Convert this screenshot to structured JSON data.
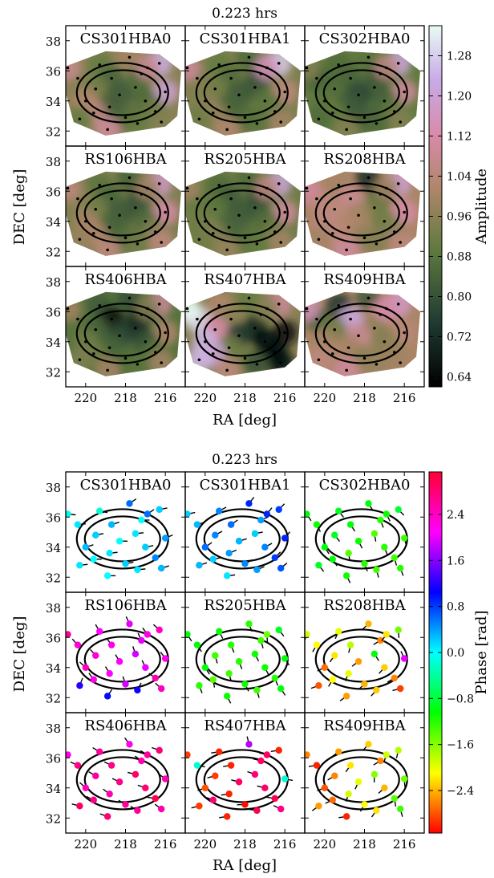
{
  "figure": {
    "panels": [
      {
        "title": "0.223 hrs",
        "xlabel": "RA [deg]",
        "ylabel": "DEC [deg]",
        "colorbar_label": "Amplitude",
        "colorbar_ticks": [
          "1.28",
          "1.20",
          "1.12",
          "1.04",
          "0.96",
          "0.88",
          "0.80",
          "0.72",
          "0.64"
        ]
      },
      {
        "title": "0.223 hrs",
        "xlabel": "RA [deg]",
        "ylabel": "DEC [deg]",
        "colorbar_label": "Phase [rad]",
        "colorbar_ticks": [
          "2.4",
          "1.6",
          "0.8",
          "0.0",
          "−0.8",
          "−1.6",
          "−2.4"
        ]
      }
    ],
    "stations": [
      "CS301HBA0",
      "CS301HBA1",
      "CS302HBA0",
      "RS106HBA",
      "RS205HBA",
      "RS208HBA",
      "RS406HBA",
      "RS407HBA",
      "RS409HBA"
    ],
    "x_ticks": [
      "220",
      "218",
      "216"
    ],
    "y_ticks": [
      "38",
      "36",
      "34",
      "32"
    ]
  },
  "chart_data": [
    {
      "type": "heatmap",
      "title": "0.223 hrs",
      "xlabel": "RA [deg]",
      "ylabel": "DEC [deg]",
      "colorbar_label": "Amplitude",
      "xlim": [
        221,
        215
      ],
      "ylim": [
        31,
        39
      ],
      "clim": [
        0.62,
        1.34
      ],
      "colorbar_ticks": [
        1.28,
        1.2,
        1.12,
        1.04,
        0.96,
        0.88,
        0.8,
        0.72,
        0.64
      ],
      "directions": [
        [
          216.3,
          36.5
        ],
        [
          217.8,
          36.9
        ],
        [
          219.3,
          36.4
        ],
        [
          220.4,
          35.5
        ],
        [
          217.2,
          35.8
        ],
        [
          218.7,
          35.5
        ],
        [
          217.5,
          34.9
        ],
        [
          219.5,
          34.8
        ],
        [
          216.0,
          34.6
        ],
        [
          218.3,
          34.4
        ],
        [
          220.0,
          34.0
        ],
        [
          217.0,
          34.0
        ],
        [
          218.8,
          33.6
        ],
        [
          216.5,
          33.3
        ],
        [
          219.6,
          33.2
        ],
        [
          218.0,
          32.9
        ],
        [
          220.3,
          32.8
        ],
        [
          216.2,
          32.6
        ],
        [
          218.9,
          32.1
        ],
        [
          217.4,
          32.5
        ],
        [
          220.9,
          36.2
        ],
        [
          216.9,
          36.2
        ]
      ],
      "stations": [
        {
          "name": "CS301HBA0",
          "values": [
            1.24,
            1.0,
            0.9,
            0.95,
            0.85,
            0.84,
            0.86,
            0.92,
            1.2,
            0.82,
            1.02,
            0.86,
            0.83,
            0.92,
            1.05,
            0.85,
            0.9,
            0.95,
            1.1,
            0.9,
            1.08,
            1.08
          ]
        },
        {
          "name": "CS301HBA1",
          "values": [
            1.28,
            0.86,
            0.9,
            0.95,
            0.82,
            0.86,
            0.8,
            0.92,
            1.05,
            0.82,
            0.95,
            0.88,
            0.84,
            0.9,
            0.98,
            0.86,
            0.92,
            1.0,
            1.02,
            0.88,
            1.1,
            1.15
          ]
        },
        {
          "name": "CS302HBA0",
          "values": [
            1.22,
            0.88,
            0.86,
            0.84,
            0.8,
            0.84,
            0.82,
            0.86,
            1.1,
            0.78,
            0.88,
            0.84,
            0.82,
            0.9,
            0.9,
            0.82,
            0.86,
            0.95,
            0.95,
            0.86,
            0.95,
            1.05
          ]
        },
        {
          "name": "RS106HBA",
          "values": [
            1.18,
            0.84,
            0.88,
            0.96,
            0.8,
            0.84,
            0.8,
            0.92,
            1.12,
            0.82,
            1.0,
            0.86,
            0.84,
            0.95,
            1.02,
            0.86,
            0.98,
            1.05,
            1.05,
            0.92,
            1.05,
            1.0
          ]
        },
        {
          "name": "RS205HBA",
          "values": [
            1.22,
            0.86,
            0.86,
            0.9,
            0.78,
            0.82,
            0.8,
            0.88,
            1.1,
            0.82,
            0.92,
            0.86,
            0.84,
            0.92,
            0.95,
            0.86,
            0.92,
            1.0,
            0.98,
            0.9,
            1.0,
            1.05
          ]
        },
        {
          "name": "RS208HBA",
          "values": [
            1.2,
            0.72,
            1.0,
            1.05,
            0.82,
            1.08,
            0.92,
            1.05,
            1.12,
            1.0,
            1.05,
            0.92,
            1.02,
            0.95,
            1.05,
            0.96,
            1.0,
            1.05,
            1.1,
            0.95,
            1.1,
            1.0
          ]
        },
        {
          "name": "RS406HBA",
          "values": [
            1.1,
            0.8,
            0.82,
            0.88,
            0.72,
            0.66,
            0.7,
            0.84,
            1.02,
            0.78,
            0.92,
            0.8,
            0.84,
            0.88,
            0.92,
            0.86,
            0.94,
            1.0,
            1.0,
            0.88,
            1.0,
            0.95
          ]
        },
        {
          "name": "RS407HBA",
          "values": [
            1.1,
            0.9,
            1.02,
            1.3,
            0.9,
            0.96,
            0.7,
            1.12,
            0.66,
            0.74,
            1.25,
            0.64,
            0.92,
            0.64,
            1.2,
            0.92,
            1.25,
            0.64,
            1.05,
            0.8,
            1.34,
            0.96
          ]
        },
        {
          "name": "RS409HBA",
          "values": [
            1.18,
            0.82,
            0.74,
            0.84,
            1.04,
            1.22,
            0.96,
            0.92,
            1.04,
            1.08,
            1.0,
            0.95,
            1.0,
            0.98,
            1.02,
            0.96,
            1.05,
            1.0,
            1.1,
            0.98,
            1.15,
            1.12
          ]
        }
      ]
    },
    {
      "type": "scatter",
      "title": "0.223 hrs",
      "xlabel": "RA [deg]",
      "ylabel": "DEC [deg]",
      "colorbar_label": "Phase [rad]",
      "xlim": [
        221,
        215
      ],
      "ylim": [
        31,
        39
      ],
      "clim": [
        -3.14,
        3.14
      ],
      "colorbar_ticks": [
        2.4,
        1.6,
        0.8,
        0.0,
        -0.8,
        -1.6,
        -2.4
      ],
      "directions": [
        [
          216.3,
          36.5
        ],
        [
          217.8,
          36.9
        ],
        [
          219.3,
          36.4
        ],
        [
          220.4,
          35.5
        ],
        [
          217.2,
          35.8
        ],
        [
          218.7,
          35.5
        ],
        [
          217.5,
          34.9
        ],
        [
          219.5,
          34.8
        ],
        [
          216.0,
          34.6
        ],
        [
          218.3,
          34.4
        ],
        [
          220.0,
          34.0
        ],
        [
          217.0,
          34.0
        ],
        [
          218.8,
          33.6
        ],
        [
          216.5,
          33.3
        ],
        [
          219.6,
          33.2
        ],
        [
          218.0,
          32.9
        ],
        [
          220.3,
          32.8
        ],
        [
          216.2,
          32.6
        ],
        [
          218.9,
          32.1
        ],
        [
          217.4,
          32.5
        ],
        [
          220.9,
          36.2
        ],
        [
          216.9,
          36.2
        ]
      ],
      "stations": [
        {
          "name": "CS301HBA0",
          "values": [
            0.2,
            0.6,
            -0.2,
            0.1,
            0.0,
            0.3,
            0.1,
            0.2,
            0.4,
            0.0,
            0.3,
            0.2,
            0.1,
            0.5,
            0.0,
            0.2,
            0.1,
            0.3,
            0.0,
            0.1,
            -0.1,
            0.6
          ]
        },
        {
          "name": "CS301HBA1",
          "values": [
            0.8,
            0.9,
            0.5,
            0.3,
            0.4,
            0.6,
            0.2,
            0.5,
            0.9,
            0.3,
            0.6,
            0.5,
            0.4,
            0.8,
            0.2,
            0.5,
            0.3,
            0.7,
            0.1,
            0.4,
            0.2,
            0.9
          ]
        },
        {
          "name": "CS302HBA0",
          "values": [
            -0.8,
            -1.0,
            -0.9,
            -1.1,
            -1.2,
            -1.0,
            -1.4,
            -0.9,
            -1.3,
            -1.1,
            -1.0,
            -1.2,
            -1.4,
            -1.3,
            -1.0,
            -1.2,
            -0.9,
            -1.2,
            -1.1,
            -1.3,
            -1.0,
            -1.1
          ]
        },
        {
          "name": "RS106HBA",
          "values": [
            2.4,
            2.0,
            2.1,
            2.3,
            2.0,
            2.2,
            1.9,
            2.3,
            2.2,
            2.1,
            2.4,
            2.0,
            2.1,
            2.5,
            2.2,
            1.9,
            1.2,
            2.4,
            1.0,
            1.1,
            2.6,
            2.2
          ]
        },
        {
          "name": "RS205HBA",
          "values": [
            -0.9,
            -1.2,
            -1.1,
            -1.0,
            -1.3,
            -1.2,
            -1.1,
            -1.3,
            -1.0,
            -1.2,
            -1.0,
            -1.1,
            -1.3,
            -1.2,
            -1.4,
            -1.1,
            -1.2,
            -1.0,
            -1.1,
            -1.3,
            -1.0,
            -1.5
          ]
        },
        {
          "name": "RS208HBA",
          "values": [
            -1.5,
            -2.4,
            -2.0,
            -2.1,
            -2.6,
            -1.8,
            -1.0,
            -2.2,
            2.0,
            -2.5,
            -2.7,
            -2.3,
            -2.0,
            -2.6,
            -2.1,
            -2.4,
            -2.8,
            -2.9,
            -2.5,
            -2.3,
            -1.9,
            -2.2
          ]
        },
        {
          "name": "RS406HBA",
          "values": [
            2.8,
            2.2,
            2.6,
            2.7,
            2.5,
            2.7,
            2.9,
            2.6,
            2.5,
            2.7,
            2.4,
            2.8,
            2.5,
            3.0,
            2.7,
            2.6,
            2.9,
            2.5,
            2.8,
            2.6,
            2.2,
            2.6
          ]
        },
        {
          "name": "RS407HBA",
          "values": [
            -3.0,
            1.8,
            -3.0,
            -0.2,
            2.9,
            -3.0,
            2.8,
            -2.9,
            -0.2,
            2.9,
            -2.8,
            2.9,
            -3.0,
            3.0,
            2.8,
            -3.1,
            -2.9,
            2.7,
            -3.0,
            3.0,
            -2.9,
            2.9
          ]
        },
        {
          "name": "RS409HBA",
          "values": [
            -1.8,
            -2.3,
            -2.5,
            -3.0,
            -2.6,
            -2.2,
            -1.6,
            -2.6,
            -1.5,
            -2.0,
            -2.8,
            -2.4,
            -1.9,
            -1.4,
            -2.7,
            -2.1,
            -2.5,
            -1.3,
            -3.0,
            -2.2,
            -2.6,
            -1.9
          ]
        }
      ]
    }
  ]
}
